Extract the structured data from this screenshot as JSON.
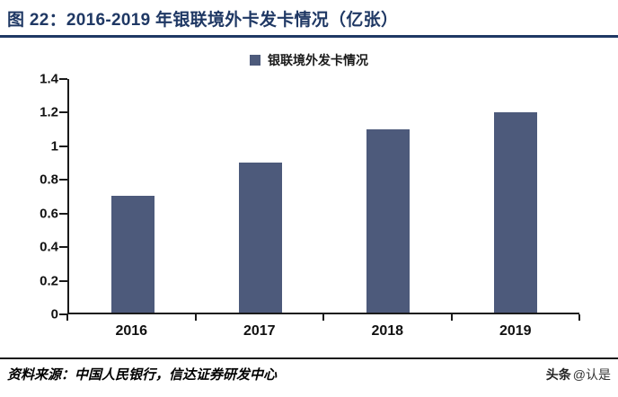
{
  "page": {
    "title": "图 22：2016-2019 年银联境外卡发卡情况（亿张）",
    "source": "资料来源：中国人民银行，信达证券研发中心",
    "watermark_badge": "头条",
    "watermark_handle": "@认是"
  },
  "colors": {
    "title_navy": "#1F3864",
    "bar": "#4D5A7B",
    "axis": "#1A1A1A"
  },
  "chart_data": {
    "type": "bar",
    "title": "图 22：2016-2019 年银联境外卡发卡情况（亿张）",
    "legend": [
      "银联境外发卡情况"
    ],
    "legend_position": "top",
    "categories": [
      "2016",
      "2017",
      "2018",
      "2019"
    ],
    "values": [
      0.7,
      0.9,
      1.1,
      1.2
    ],
    "unit": "亿张",
    "xlabel": "",
    "ylabel": "",
    "ylim": [
      0,
      1.4
    ],
    "yticks": [
      0,
      0.2,
      0.4,
      0.6,
      0.8,
      1,
      1.2,
      1.4
    ],
    "ytick_labels": [
      "0",
      "0.2",
      "0.4",
      "0.6",
      "0.8",
      "1",
      "1.2",
      "1.4"
    ],
    "grid": false
  }
}
